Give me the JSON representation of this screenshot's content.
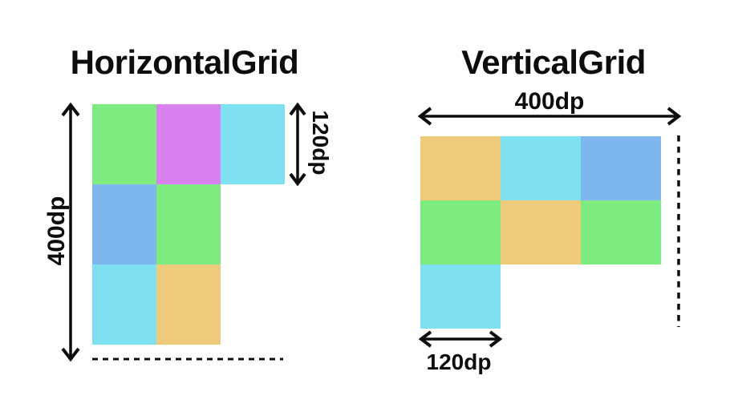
{
  "colors": {
    "green": "#7EEB80",
    "magenta": "#D981EF",
    "cyan": "#7FE1EF",
    "blue": "#7EB6EE",
    "orange": "#EECA7D",
    "ink": "#0D0D0D",
    "background": "#FFFFFF"
  },
  "horizontal_grid": {
    "title": "HorizontalGrid",
    "height_label": "400dp",
    "row_height_label": "120dp",
    "cells": [
      {
        "row": 0,
        "col": 0,
        "color": "green"
      },
      {
        "row": 0,
        "col": 1,
        "color": "magenta"
      },
      {
        "row": 0,
        "col": 2,
        "color": "cyan"
      },
      {
        "row": 1,
        "col": 0,
        "color": "blue"
      },
      {
        "row": 1,
        "col": 1,
        "color": "green"
      },
      {
        "row": 2,
        "col": 0,
        "color": "cyan"
      },
      {
        "row": 2,
        "col": 1,
        "color": "orange"
      }
    ]
  },
  "vertical_grid": {
    "title": "VerticalGrid",
    "width_label": "400dp",
    "col_width_label": "120dp",
    "cells": [
      {
        "row": 0,
        "col": 0,
        "color": "orange"
      },
      {
        "row": 0,
        "col": 1,
        "color": "cyan"
      },
      {
        "row": 0,
        "col": 2,
        "color": "blue"
      },
      {
        "row": 1,
        "col": 0,
        "color": "green"
      },
      {
        "row": 1,
        "col": 1,
        "color": "orange"
      },
      {
        "row": 1,
        "col": 2,
        "color": "green"
      },
      {
        "row": 2,
        "col": 0,
        "color": "cyan"
      }
    ]
  }
}
